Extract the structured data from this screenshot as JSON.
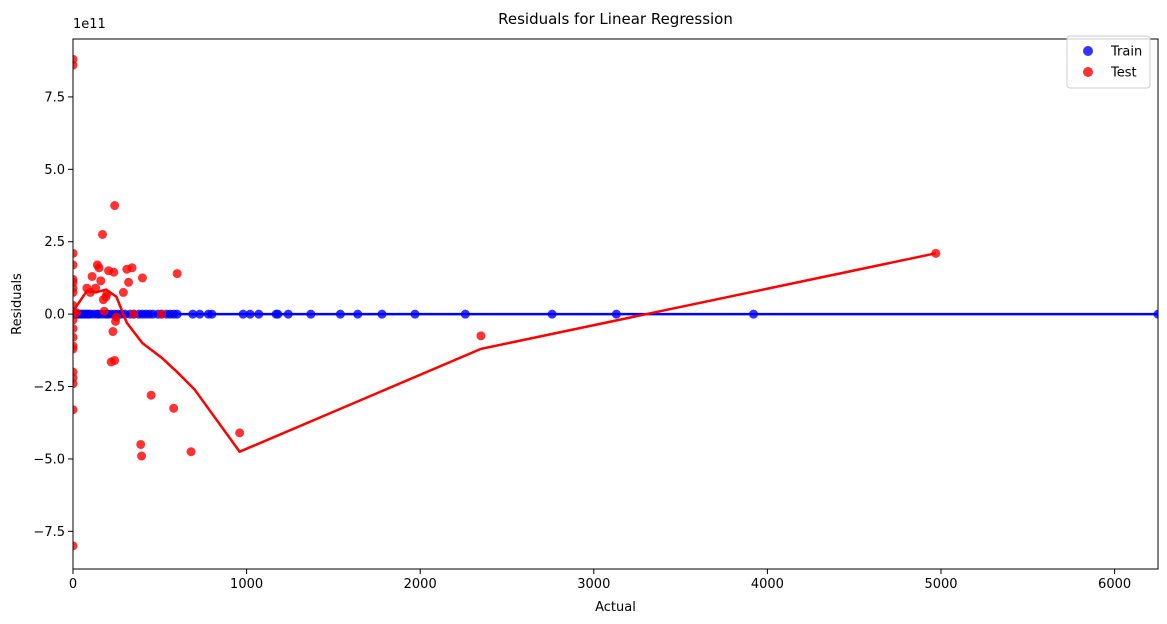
{
  "chart_data": {
    "type": "scatter",
    "title": "Residuals for Linear Regression",
    "xlabel": "Actual",
    "ylabel": "Residuals",
    "y_offset_label": "1e11",
    "xlim": [
      0,
      6250
    ],
    "ylim": [
      -8.8,
      9.5
    ],
    "x_ticks": [
      0,
      1000,
      2000,
      3000,
      4000,
      5000,
      6000
    ],
    "x_tick_labels": [
      "0",
      "1000",
      "2000",
      "3000",
      "4000",
      "5000",
      "6000"
    ],
    "y_ticks": [
      -7.5,
      -5.0,
      -2.5,
      0.0,
      2.5,
      5.0,
      7.5
    ],
    "y_tick_labels": [
      "−7.5",
      "−5.0",
      "−2.5",
      "0.0",
      "2.5",
      "5.0",
      "7.5"
    ],
    "grid": false,
    "legend_position": "top-right",
    "series": [
      {
        "name": "Train",
        "kind": "scatter",
        "color": "#0000ff",
        "points": [
          [
            0,
            0
          ],
          [
            5,
            0
          ],
          [
            10,
            0
          ],
          [
            15,
            0
          ],
          [
            20,
            0
          ],
          [
            30,
            0
          ],
          [
            40,
            0
          ],
          [
            50,
            0
          ],
          [
            60,
            0
          ],
          [
            70,
            0
          ],
          [
            80,
            0
          ],
          [
            90,
            0
          ],
          [
            100,
            0
          ],
          [
            120,
            0
          ],
          [
            140,
            0
          ],
          [
            150,
            0
          ],
          [
            170,
            0
          ],
          [
            190,
            0
          ],
          [
            200,
            0
          ],
          [
            220,
            0
          ],
          [
            240,
            0
          ],
          [
            260,
            0
          ],
          [
            280,
            0
          ],
          [
            300,
            0
          ],
          [
            330,
            0
          ],
          [
            350,
            0
          ],
          [
            380,
            0
          ],
          [
            400,
            0
          ],
          [
            420,
            0
          ],
          [
            440,
            0
          ],
          [
            460,
            0
          ],
          [
            490,
            0
          ],
          [
            510,
            0
          ],
          [
            540,
            0
          ],
          [
            560,
            0
          ],
          [
            580,
            0
          ],
          [
            600,
            0
          ],
          [
            690,
            0
          ],
          [
            730,
            0
          ],
          [
            780,
            0
          ],
          [
            800,
            0
          ],
          [
            980,
            0
          ],
          [
            1020,
            0
          ],
          [
            1070,
            0
          ],
          [
            1170,
            0
          ],
          [
            1180,
            0
          ],
          [
            1240,
            0
          ],
          [
            1370,
            0
          ],
          [
            1540,
            0
          ],
          [
            1640,
            0
          ],
          [
            1780,
            0
          ],
          [
            1970,
            0
          ],
          [
            2260,
            0
          ],
          [
            2760,
            0
          ],
          [
            3130,
            0
          ],
          [
            3920,
            0
          ],
          [
            6250,
            0
          ]
        ]
      },
      {
        "name": "Test",
        "kind": "scatter",
        "color": "#ff0000",
        "points": [
          [
            0,
            8.8
          ],
          [
            0,
            8.6
          ],
          [
            0,
            2.1
          ],
          [
            0,
            1.7
          ],
          [
            0,
            1.2
          ],
          [
            0,
            1.1
          ],
          [
            0,
            0.9
          ],
          [
            0,
            0.75
          ],
          [
            0,
            0.3
          ],
          [
            0,
            0.1
          ],
          [
            0,
            -0.2
          ],
          [
            0,
            -0.5
          ],
          [
            0,
            -0.8
          ],
          [
            0,
            -1.1
          ],
          [
            0,
            -1.2
          ],
          [
            0,
            -2.0
          ],
          [
            0,
            -2.2
          ],
          [
            0,
            -2.4
          ],
          [
            0,
            -3.3
          ],
          [
            0,
            -8.0
          ],
          [
            20,
            0.05
          ],
          [
            80,
            0.9
          ],
          [
            100,
            0.75
          ],
          [
            110,
            1.3
          ],
          [
            130,
            0.9
          ],
          [
            140,
            1.7
          ],
          [
            150,
            1.6
          ],
          [
            160,
            1.15
          ],
          [
            170,
            2.75
          ],
          [
            175,
            0.5
          ],
          [
            180,
            0.1
          ],
          [
            190,
            0.6
          ],
          [
            195,
            0.7
          ],
          [
            205,
            1.5
          ],
          [
            220,
            -1.65
          ],
          [
            230,
            -0.6
          ],
          [
            235,
            1.45
          ],
          [
            240,
            3.75
          ],
          [
            240,
            -1.6
          ],
          [
            245,
            -0.25
          ],
          [
            250,
            -0.1
          ],
          [
            290,
            0.75
          ],
          [
            310,
            1.55
          ],
          [
            320,
            1.1
          ],
          [
            340,
            1.6
          ],
          [
            350,
            0.0
          ],
          [
            390,
            -4.5
          ],
          [
            395,
            -4.9
          ],
          [
            400,
            1.25
          ],
          [
            450,
            -2.8
          ],
          [
            510,
            0.0
          ],
          [
            580,
            -3.25
          ],
          [
            600,
            1.4
          ],
          [
            680,
            -4.75
          ],
          [
            960,
            -4.1
          ],
          [
            2350,
            -0.75
          ],
          [
            4970,
            2.1
          ]
        ]
      },
      {
        "name": "",
        "kind": "line",
        "color": "#ff0000",
        "points": [
          [
            0,
            0.1
          ],
          [
            80,
            0.8
          ],
          [
            130,
            0.75
          ],
          [
            190,
            0.85
          ],
          [
            250,
            0.6
          ],
          [
            310,
            -0.3
          ],
          [
            400,
            -1.0
          ],
          [
            510,
            -1.5
          ],
          [
            600,
            -2.0
          ],
          [
            700,
            -2.6
          ],
          [
            960,
            -4.75
          ],
          [
            2350,
            -1.2
          ],
          [
            4970,
            2.1
          ]
        ]
      },
      {
        "name": "",
        "kind": "line",
        "color": "#0000ff",
        "points": [
          [
            0,
            0
          ],
          [
            6250,
            0
          ]
        ]
      }
    ]
  }
}
